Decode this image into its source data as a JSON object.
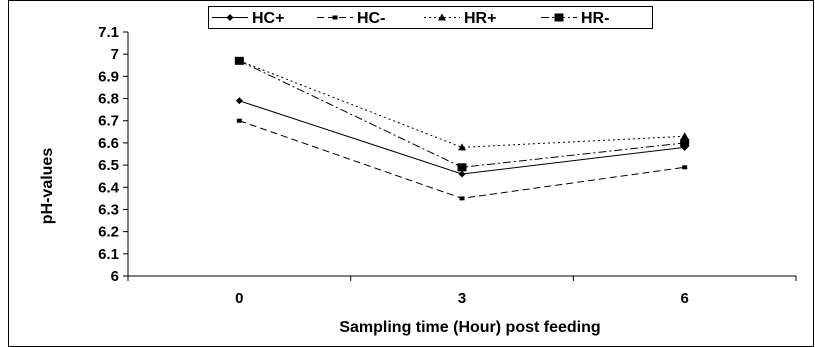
{
  "chart_data": {
    "type": "line",
    "title": "",
    "xlabel": "Sampling time (Hour) post feeding",
    "ylabel": "pH-values",
    "categories": [
      "0",
      "3",
      "6"
    ],
    "ylim": [
      6,
      7.1
    ],
    "yticks": [
      "6",
      "6.1",
      "6.2",
      "6.3",
      "6.4",
      "6.5",
      "6.6",
      "6.7",
      "6.8",
      "6.9",
      "7",
      "7.1"
    ],
    "grid": false,
    "legend_position": "top",
    "series": [
      {
        "name": "HC+",
        "values": [
          6.79,
          6.46,
          6.58
        ],
        "dash": "solid",
        "marker": "diamond",
        "color": "#000000"
      },
      {
        "name": "HC-",
        "values": [
          6.7,
          6.35,
          6.49
        ],
        "dash": "dashed",
        "marker": "square-small",
        "color": "#000000"
      },
      {
        "name": "HR+",
        "values": [
          6.97,
          6.58,
          6.63
        ],
        "dash": "dotted",
        "marker": "triangle",
        "color": "#000000"
      },
      {
        "name": "HR-",
        "values": [
          6.97,
          6.49,
          6.6
        ],
        "dash": "dashdot",
        "marker": "square",
        "color": "#000000"
      }
    ]
  }
}
